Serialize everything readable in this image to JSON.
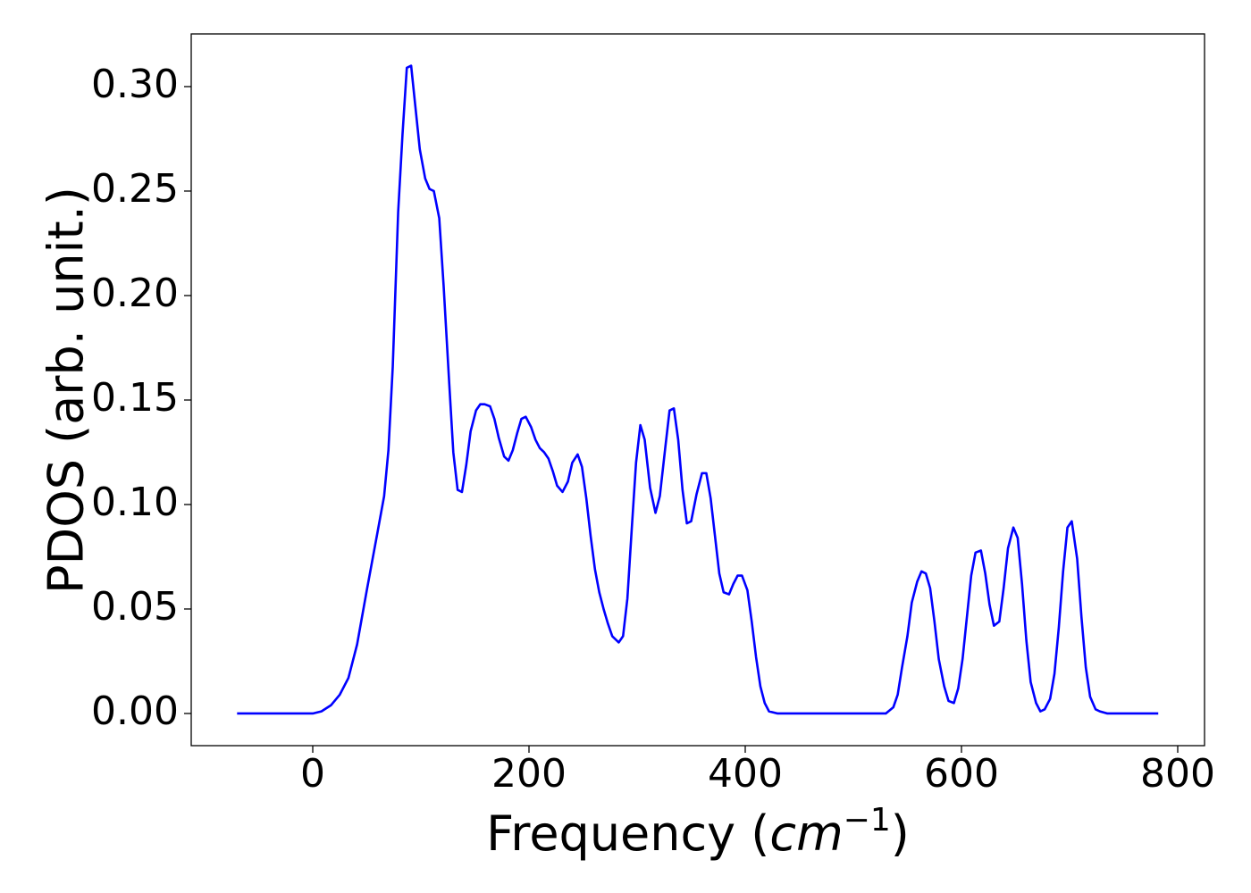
{
  "chart_data": {
    "type": "line",
    "x_label_parts": [
      "Frequency (",
      "cm",
      "−1",
      ")"
    ],
    "y_label": "PDOS (arb. unit.)",
    "xlim": [
      -112.4,
      824.8
    ],
    "ylim": [
      -0.0154,
      0.3252
    ],
    "xticks": [
      0,
      200,
      400,
      600,
      800
    ],
    "yticks": [
      {
        "value": 0,
        "label": "0.00"
      },
      {
        "value": 0.05,
        "label": "0.05"
      },
      {
        "value": 0.1,
        "label": "0.10"
      },
      {
        "value": 0.15,
        "label": "0.15"
      },
      {
        "value": 0.2,
        "label": "0.20"
      },
      {
        "value": 0.25,
        "label": "0.25"
      },
      {
        "value": 0.3,
        "label": "0.30"
      }
    ],
    "grid": false,
    "series": [
      {
        "color": "#0000ff",
        "x": [
          -70,
          -10,
          0,
          8,
          17,
          25,
          33,
          41,
          50,
          55,
          60,
          66,
          70,
          74,
          79,
          83,
          87,
          91,
          95,
          99,
          104,
          108,
          112,
          117,
          121,
          126,
          130,
          134,
          138,
          142,
          146,
          151,
          155,
          159,
          164,
          168,
          172,
          177,
          181,
          185,
          189,
          193,
          197,
          202,
          206,
          210,
          214,
          218,
          222,
          226,
          231,
          236,
          240,
          245,
          249,
          253,
          257,
          261,
          265,
          269,
          273,
          277,
          283,
          287,
          291,
          295,
          299,
          303,
          307,
          312,
          317,
          321,
          326,
          330,
          334,
          338,
          342,
          346,
          350,
          355,
          360,
          364,
          368,
          372,
          376,
          380,
          385,
          389,
          393,
          397,
          402,
          406,
          410,
          414,
          418,
          422,
          430,
          530,
          537,
          541,
          545,
          550,
          554,
          559,
          563,
          567,
          571,
          575,
          579,
          584,
          588,
          593,
          597,
          601,
          605,
          609,
          613,
          618,
          622,
          626,
          630,
          635,
          639,
          643,
          648,
          652,
          656,
          660,
          664,
          669,
          673,
          677,
          682,
          686,
          690,
          694,
          698,
          702,
          707,
          711,
          715,
          719,
          724,
          728,
          735,
          782
        ],
        "values": [
          0,
          0,
          0,
          0.001,
          0.004,
          0.009,
          0.017,
          0.033,
          0.059,
          0.073,
          0.087,
          0.104,
          0.126,
          0.166,
          0.24,
          0.277,
          0.309,
          0.31,
          0.29,
          0.27,
          0.256,
          0.251,
          0.25,
          0.237,
          0.205,
          0.16,
          0.125,
          0.107,
          0.106,
          0.119,
          0.135,
          0.145,
          0.148,
          0.148,
          0.147,
          0.141,
          0.132,
          0.123,
          0.121,
          0.126,
          0.134,
          0.141,
          0.142,
          0.137,
          0.131,
          0.127,
          0.125,
          0.122,
          0.116,
          0.109,
          0.106,
          0.111,
          0.12,
          0.124,
          0.118,
          0.103,
          0.085,
          0.069,
          0.058,
          0.05,
          0.043,
          0.037,
          0.034,
          0.037,
          0.055,
          0.088,
          0.12,
          0.138,
          0.131,
          0.108,
          0.096,
          0.104,
          0.127,
          0.145,
          0.146,
          0.131,
          0.107,
          0.091,
          0.092,
          0.105,
          0.115,
          0.115,
          0.103,
          0.085,
          0.067,
          0.058,
          0.057,
          0.062,
          0.066,
          0.066,
          0.059,
          0.044,
          0.027,
          0.013,
          0.005,
          0.001,
          0,
          0,
          0.003,
          0.009,
          0.022,
          0.037,
          0.053,
          0.063,
          0.068,
          0.067,
          0.06,
          0.044,
          0.026,
          0.013,
          0.006,
          0.005,
          0.012,
          0.026,
          0.046,
          0.066,
          0.077,
          0.078,
          0.067,
          0.052,
          0.042,
          0.044,
          0.06,
          0.079,
          0.089,
          0.084,
          0.062,
          0.035,
          0.015,
          0.005,
          0.001,
          0.002,
          0.007,
          0.019,
          0.041,
          0.068,
          0.089,
          0.092,
          0.074,
          0.046,
          0.022,
          0.008,
          0.002,
          0.001,
          0,
          0
        ]
      }
    ]
  }
}
